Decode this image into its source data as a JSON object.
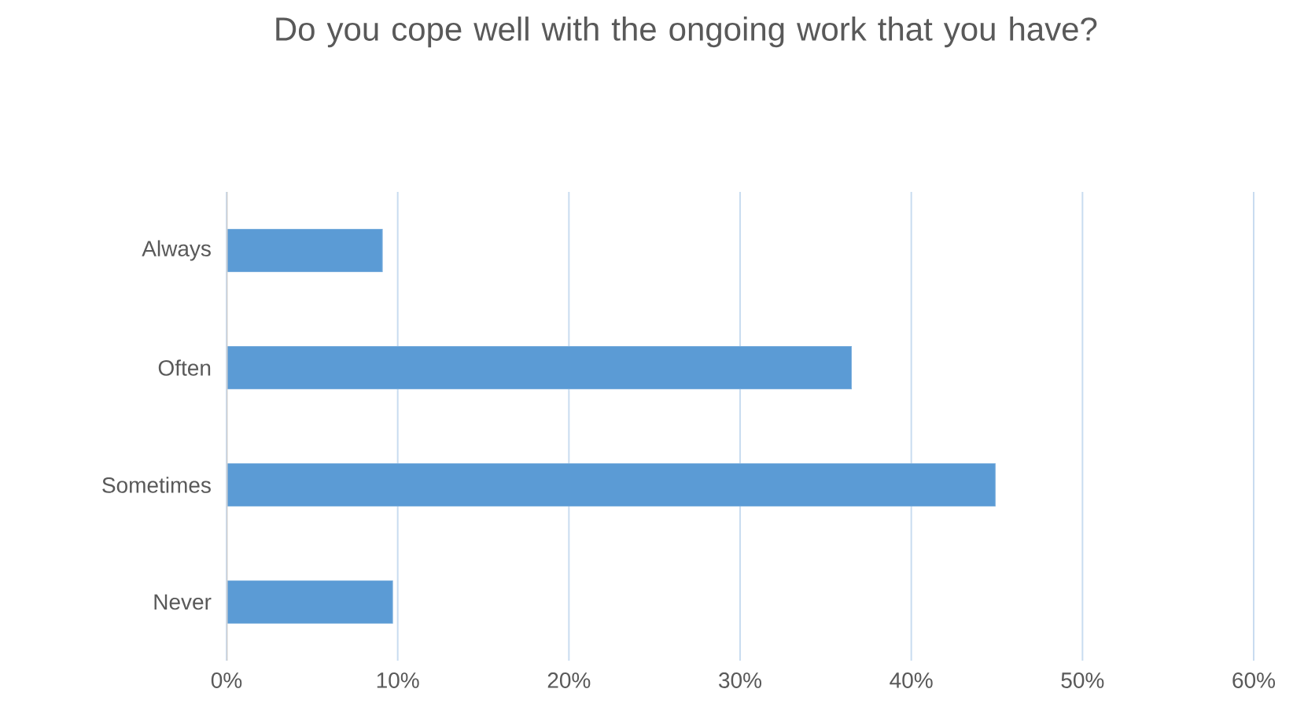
{
  "chart_data": {
    "type": "bar",
    "orientation": "horizontal",
    "title": "Do you cope well with the ongoing work that you have?",
    "categories": [
      "Always",
      "Often",
      "Sometimes",
      "Never"
    ],
    "values": [
      9.1,
      36.5,
      44.9,
      9.7
    ],
    "color": "#5b9bd5",
    "xlim": [
      0,
      60
    ],
    "xticks": [
      {
        "value": 0,
        "label": "0%"
      },
      {
        "value": 10,
        "label": "10%"
      },
      {
        "value": 20,
        "label": "20%"
      },
      {
        "value": 30,
        "label": "30%"
      },
      {
        "value": 40,
        "label": "40%"
      },
      {
        "value": 50,
        "label": "50%"
      },
      {
        "value": 60,
        "label": "60%"
      }
    ],
    "grid": "x"
  }
}
